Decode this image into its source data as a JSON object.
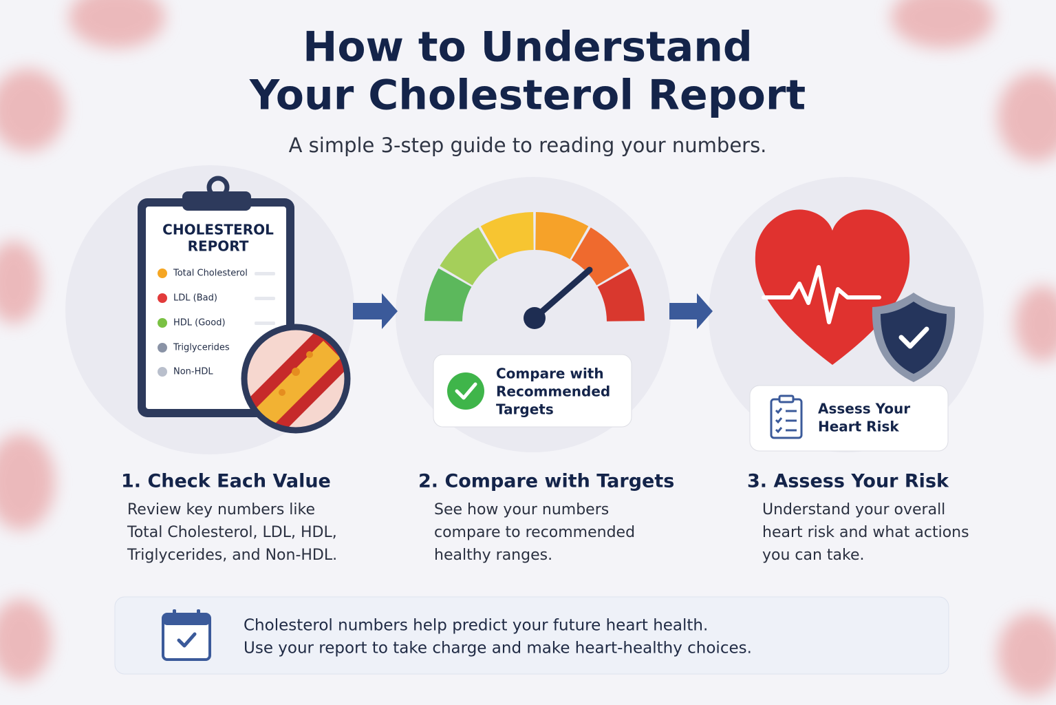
{
  "header": {
    "title": [
      "How to Understand",
      "Your Cholesterol Report"
    ],
    "subtitle": "A simple 3-step guide to reading your numbers."
  },
  "steps": [
    {
      "illustration": {
        "title": [
          "CHOLESTEROL",
          "REPORT"
        ],
        "items": [
          "Total Cholesterol",
          "LDL (Bad)",
          "HDL (Good)",
          "Triglycerides",
          "Non-HDL"
        ]
      },
      "heading": "1. Check Each Value",
      "description": [
        "Review key numbers like",
        "Total Cholesterol, LDL, HDL,",
        "Triglycerides, and Non-HDL."
      ]
    },
    {
      "illustration": {
        "badge": [
          "Compare with",
          "Recommended",
          "Targets"
        ]
      },
      "heading": "2. Compare with Targets",
      "description": [
        "See how your numbers",
        "compare to recommended",
        "healthy ranges."
      ]
    },
    {
      "illustration": {
        "badge": [
          "Assess Your",
          "Heart Risk"
        ]
      },
      "heading": "3. Assess Your Risk",
      "description": [
        "Understand your overall",
        "heart risk and what actions",
        "you can take."
      ]
    }
  ],
  "footer": [
    "Cholesterol numbers help predict your future heart health.",
    "Use your report to take charge and make heart-healthy choices."
  ]
}
